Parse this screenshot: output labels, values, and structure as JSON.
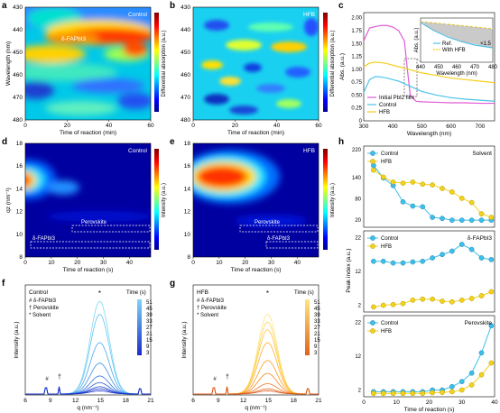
{
  "labels": {
    "a": "a",
    "b": "b",
    "c": "c",
    "d": "d",
    "e": "e",
    "f": "f",
    "g": "g",
    "h": "h"
  },
  "panel_a": {
    "tag": "Control",
    "annotation": "δ-FAPbI3",
    "xlabel": "Time of reaction (min)",
    "ylabel": "Wavelength (nm)",
    "cbar_label": "Differential absorption (a.u.)",
    "xticks": [
      "0",
      "20",
      "40",
      "60"
    ],
    "yticks": [
      "430",
      "440",
      "450",
      "460",
      "470",
      "480"
    ]
  },
  "panel_b": {
    "tag": "HFB",
    "xlabel": "Time of reaction (min)",
    "cbar_label": "Differential absorption (a.u.)",
    "xticks": [
      "0",
      "20",
      "40",
      "60"
    ],
    "yticks": [
      "430",
      "440",
      "450",
      "460",
      "470",
      "480"
    ]
  },
  "panel_c": {
    "xlabel": "Wavelength (nm)",
    "ylabel": "Abs. (a.u.)",
    "xticks": [
      "300",
      "400",
      "500",
      "600",
      "700"
    ],
    "yticks": [
      "0",
      "0.25",
      "0.50",
      "0.75",
      "1.00",
      "1.25",
      "1.50",
      "1.75",
      "2.00"
    ],
    "legend": [
      "Initial PbI2 film",
      "Control",
      "HFB"
    ],
    "inset": {
      "ylabel": "Abs. (a.u.)",
      "xlabel": "Wavelength (nm)",
      "xticks": [
        "440",
        "450",
        "460",
        "470",
        "480"
      ],
      "legend": [
        "Ref.",
        "With HFB"
      ],
      "annotation": "×1.5"
    },
    "colors": {
      "pbi2": "#e05bd6",
      "control": "#4cc3ea",
      "hfb": "#f5cf1a"
    }
  },
  "panel_d": {
    "tag": "Control",
    "xlabel": "Time of reaction (s)",
    "ylabel": "qz (nm⁻¹)",
    "cbar_label": "Intensity (a.u.)",
    "xticks": [
      "0",
      "10",
      "20",
      "30",
      "40"
    ],
    "yticks": [
      "8",
      "10",
      "12",
      "14",
      "16",
      "18"
    ],
    "box1": "Perovskite",
    "box2": "δ-FAPbI3"
  },
  "panel_e": {
    "tag": "HFB",
    "xlabel": "Time of reaction (s)",
    "cbar_label": "Intensity (a.u.)",
    "xticks": [
      "0",
      "10",
      "20",
      "30",
      "40"
    ],
    "yticks": [
      "8",
      "10",
      "12",
      "14",
      "16",
      "18"
    ],
    "box1": "Perovskite",
    "box2": "δ-FAPbI3"
  },
  "panel_f": {
    "tag": "Control",
    "key": [
      "# δ-FAPbI3",
      "† Perovskite",
      "* Solvent"
    ],
    "xlabel": "q (nm⁻¹)",
    "ylabel": "Intensity (a.u.)",
    "xticks": [
      "6",
      "9",
      "12",
      "15",
      "18",
      "21"
    ],
    "legend_title": "Time (s)",
    "times": [
      "51",
      "45",
      "39",
      "33",
      "27",
      "21",
      "15",
      "9",
      "3"
    ],
    "marks": {
      "hash": "#",
      "dagger": "†",
      "star": "*"
    }
  },
  "panel_g": {
    "tag": "HFB",
    "key": [
      "# δ-FAPbI3",
      "† Perovskite",
      "* Solvent"
    ],
    "xlabel": "q (nm⁻¹)",
    "ylabel": "Intensity (a.u.)",
    "xticks": [
      "6",
      "9",
      "12",
      "15",
      "18",
      "21"
    ],
    "legend_title": "Time (s)",
    "times": [
      "51",
      "45",
      "39",
      "33",
      "27",
      "21",
      "15",
      "9",
      "3"
    ],
    "marks": {
      "hash": "#",
      "dagger": "†",
      "star": "*"
    }
  },
  "panel_h": {
    "ylabel": "Peak index (a.u.)",
    "xlabel": "Time of reaction (s)",
    "xticks": [
      "0",
      "10",
      "20",
      "30",
      "40"
    ],
    "sub": [
      {
        "tag": "Solvent",
        "yticks": [
          "20",
          "80",
          "140",
          "220"
        ],
        "legend": [
          "Control",
          "HFB"
        ]
      },
      {
        "tag": "δ-FAPbI3",
        "yticks": [
          "2",
          "12",
          "22"
        ],
        "legend": [
          "Control",
          "HFB"
        ]
      },
      {
        "tag": "Perovskite",
        "yticks": [
          "2",
          "12",
          "22"
        ],
        "legend": [
          "Control",
          "HFB"
        ]
      }
    ]
  },
  "chart_data": [
    {
      "type": "line",
      "panel": "c",
      "xlabel": "Wavelength (nm)",
      "ylabel": "Abs. (a.u.)",
      "xlim": [
        300,
        750
      ],
      "ylim": [
        0,
        2.1
      ],
      "series": [
        {
          "name": "Initial PbI2 film",
          "x": [
            300,
            320,
            340,
            360,
            380,
            400,
            420,
            440,
            450,
            460,
            480,
            500,
            550,
            600,
            650,
            700,
            750
          ],
          "y": [
            1.55,
            1.8,
            1.83,
            1.85,
            1.85,
            1.82,
            1.75,
            1.55,
            1.0,
            0.5,
            0.38,
            0.37,
            0.36,
            0.35,
            0.35,
            0.34,
            0.34
          ]
        },
        {
          "name": "Control",
          "x": [
            300,
            320,
            340,
            360,
            380,
            400,
            420,
            440,
            460,
            480,
            500,
            550,
            600,
            650,
            700,
            750
          ],
          "y": [
            0.55,
            0.8,
            0.86,
            0.85,
            0.83,
            0.8,
            0.77,
            0.72,
            0.67,
            0.62,
            0.57,
            0.5,
            0.45,
            0.42,
            0.4,
            0.38
          ]
        },
        {
          "name": "HFB",
          "x": [
            300,
            320,
            340,
            360,
            380,
            400,
            420,
            440,
            460,
            480,
            500,
            550,
            600,
            650,
            700,
            750
          ],
          "y": [
            1.05,
            1.12,
            1.14,
            1.13,
            1.11,
            1.08,
            1.05,
            1.02,
            0.99,
            0.96,
            0.93,
            0.88,
            0.83,
            0.8,
            0.77,
            0.74
          ]
        }
      ]
    },
    {
      "type": "line",
      "panel": "h-solvent",
      "x": [
        3,
        6,
        9,
        12,
        15,
        18,
        21,
        24,
        27,
        30,
        33,
        36,
        39
      ],
      "ylim": [
        0,
        230
      ],
      "series": [
        {
          "name": "Control",
          "values": [
            175,
            140,
            118,
            72,
            60,
            58,
            28,
            25,
            20,
            20,
            20,
            20,
            20
          ]
        },
        {
          "name": "HFB",
          "values": [
            162,
            142,
            128,
            125,
            128,
            122,
            120,
            110,
            100,
            82,
            70,
            38,
            28
          ]
        }
      ]
    },
    {
      "type": "line",
      "panel": "h-delta",
      "x": [
        3,
        6,
        9,
        12,
        15,
        18,
        21,
        24,
        27,
        30,
        33,
        36,
        39
      ],
      "ylim": [
        0,
        24
      ],
      "series": [
        {
          "name": "Control",
          "values": [
            15,
            15,
            14.5,
            14.5,
            14.8,
            15,
            16,
            17,
            18,
            20,
            18.5,
            16,
            15.5
          ]
        },
        {
          "name": "HFB",
          "values": [
            1.5,
            2,
            2.2,
            2.5,
            3.5,
            3.8,
            3.8,
            3.2,
            3,
            3.5,
            4,
            4.8,
            6
          ]
        }
      ]
    },
    {
      "type": "line",
      "panel": "h-perovskite",
      "x": [
        3,
        6,
        9,
        12,
        15,
        18,
        21,
        24,
        27,
        30,
        33,
        36,
        39
      ],
      "ylim": [
        0,
        24
      ],
      "series": [
        {
          "name": "Control",
          "values": [
            1.5,
            1.5,
            1.5,
            1.5,
            1.5,
            1.5,
            2,
            2,
            3,
            4.5,
            7,
            13,
            21
          ]
        },
        {
          "name": "HFB",
          "values": [
            1,
            1,
            1,
            1,
            1,
            1,
            1.2,
            1.3,
            1.5,
            2,
            3.5,
            6.5,
            10
          ]
        }
      ]
    },
    {
      "type": "line",
      "panel": "f",
      "xlim": [
        6,
        21
      ],
      "series_peak": {
        "t": [
          51,
          45,
          39,
          33,
          27,
          21,
          15,
          9,
          3
        ],
        "peak": [
          180,
          155,
          100,
          60,
          35,
          22,
          14,
          10,
          6
        ]
      }
    },
    {
      "type": "line",
      "panel": "g",
      "xlim": [
        6,
        21
      ],
      "series_peak": {
        "t": [
          51,
          45,
          39,
          33,
          27,
          21,
          15,
          9,
          3
        ],
        "peak": [
          155,
          140,
          125,
          100,
          65,
          40,
          20,
          10,
          6
        ]
      }
    }
  ]
}
